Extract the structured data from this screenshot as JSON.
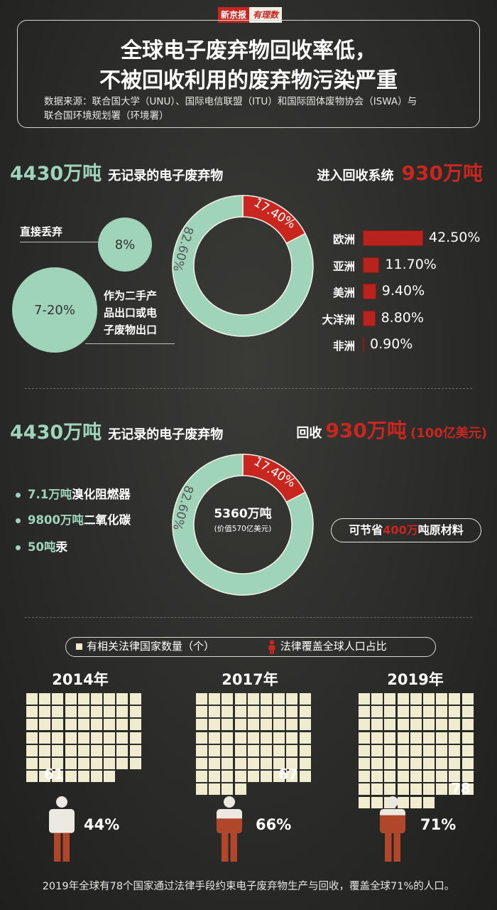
{
  "brand": {
    "name": "新京报",
    "sub": "有理数"
  },
  "title": {
    "line1": "全球电子废弃物回收率低，",
    "line2": "不被回收利用的废弃物污染严重"
  },
  "source": {
    "line1": "数据来源：联合国大学（UNU）、国际电信联盟（ITU）和国际固体废物协会（ISWA）与",
    "line2": "联合国环境规划署（环境署）"
  },
  "section1": {
    "left_num": "4430万吨",
    "left_label": "无记录的电子废弃物",
    "right_label": "进入回收系统",
    "right_num": "930万吨",
    "dump_label": "直接丢弃",
    "dump_value": "8%",
    "export_value": "7-20%",
    "export_label": [
      "作为二手产",
      "品出口或电",
      "子废物出口"
    ]
  },
  "section2": {
    "left_num": "4430万吨",
    "left_label": "无记录的电子废弃物",
    "right_prefix": "回收",
    "right_num": "930万吨",
    "right_paren": "(100亿美元)",
    "center_main": "5360万吨",
    "center_sub": "(价值570亿美元)",
    "chems": [
      {
        "num": "7.1万吨",
        "name": "溴化阻燃器"
      },
      {
        "num": "9800万吨",
        "name": "二氧化碳"
      },
      {
        "num": "50吨",
        "name": "汞"
      }
    ],
    "save_prefix": "可节省",
    "save_num": "400万",
    "save_suffix": "吨原材料"
  },
  "legend": {
    "squares": "有相关法律国家数量（个）",
    "person": "法律覆盖全球人口占比"
  },
  "years": [
    {
      "year": "2014年",
      "count": 61,
      "count_label": "61",
      "coverage": 0.44,
      "coverage_label": "44%"
    },
    {
      "year": "2017年",
      "count": 67,
      "count_label": "67",
      "coverage": 0.66,
      "coverage_label": "66%"
    },
    {
      "year": "2019年",
      "count": 78,
      "count_label": "78",
      "coverage": 0.71,
      "coverage_label": "71%"
    }
  ],
  "footer": "2019年全球有78个国家通过法律手段约束电子废弃物生产与回收，覆盖全球71%的人口。",
  "colors": {
    "green": "#9fd4bb",
    "red": "#c8261f",
    "cream": "#efeccf",
    "bg": "#2e2e2c"
  },
  "chart_data": [
    {
      "type": "pie",
      "categories": [
        "17.40%",
        "82.60%"
      ],
      "values": [
        17.4,
        82.6
      ],
      "labels": [
        "17.40%",
        "82.60%"
      ]
    },
    {
      "type": "bar",
      "categories": [
        "欧洲",
        "亚洲",
        "美洲",
        "大洋洲",
        "非洲"
      ],
      "values": [
        42.5,
        11.7,
        9.4,
        8.8,
        0.9
      ],
      "labels": [
        "42.50%",
        "11.70%",
        "9.40%",
        "8.80%",
        "0.90%"
      ]
    },
    {
      "type": "pie",
      "categories": [
        "17.40%",
        "82.60%"
      ],
      "values": [
        17.4,
        82.6
      ],
      "labels": [
        "17.40%",
        "82.60%"
      ]
    }
  ]
}
